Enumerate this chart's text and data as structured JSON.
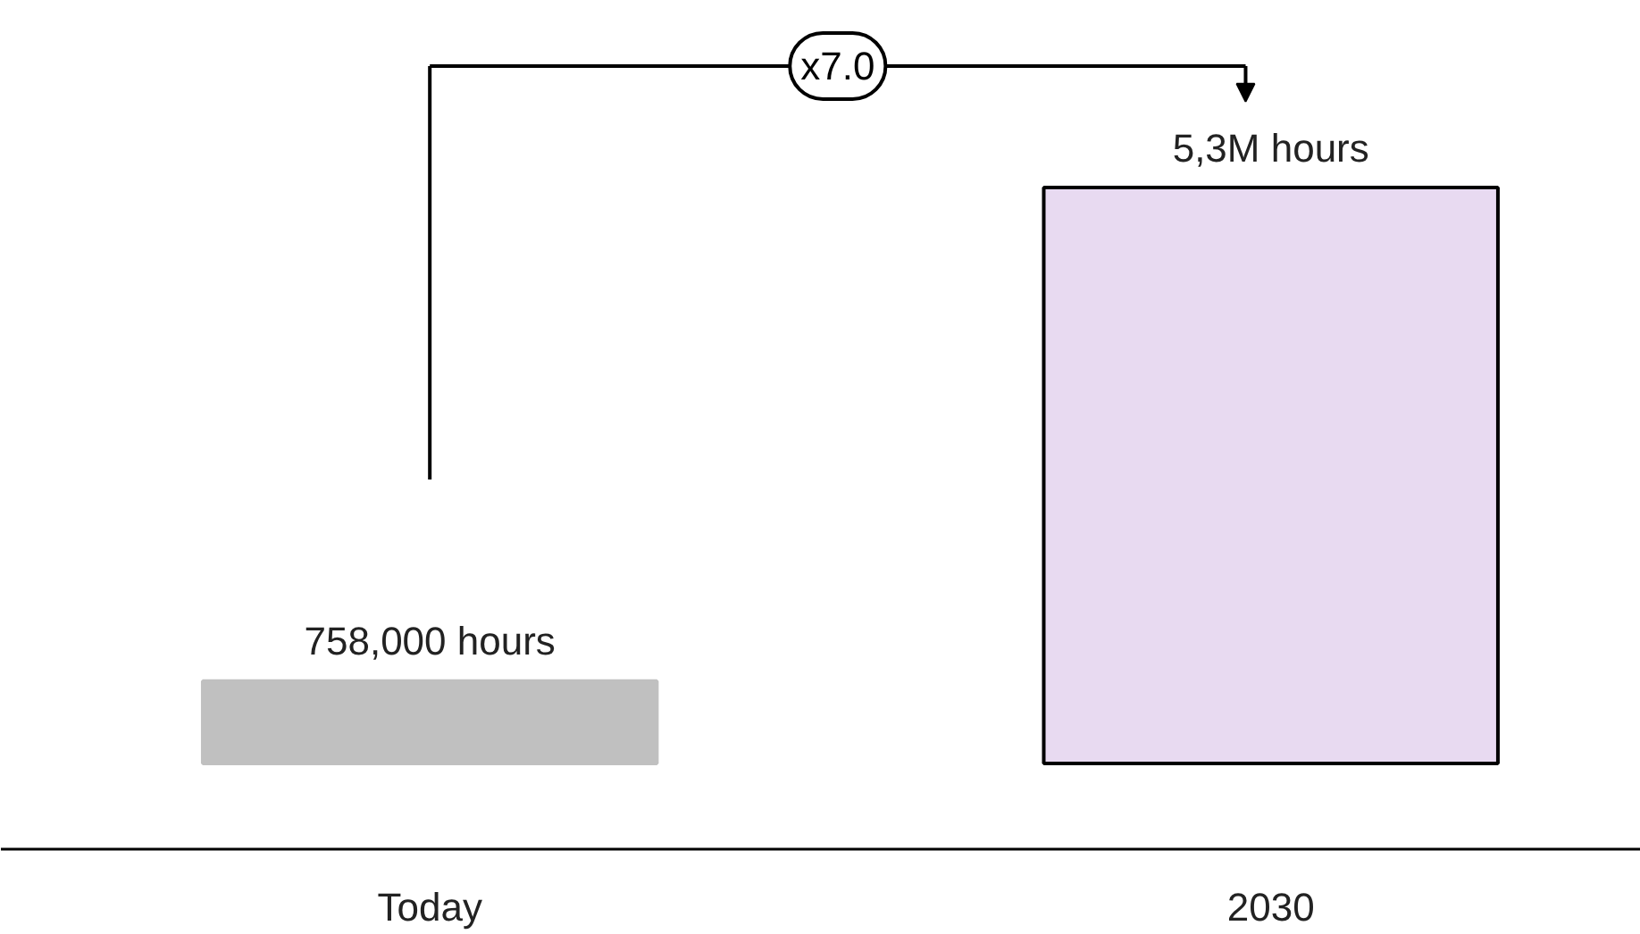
{
  "chart_data": {
    "type": "bar",
    "categories": [
      "Today",
      "2030"
    ],
    "values": [
      758000,
      5300000
    ],
    "colors": [
      "#c0c0c0",
      "#e8daf1"
    ],
    "value_labels": [
      "758,000 hours",
      "5,3M hours"
    ],
    "annotations": [
      "x7.0"
    ]
  }
}
